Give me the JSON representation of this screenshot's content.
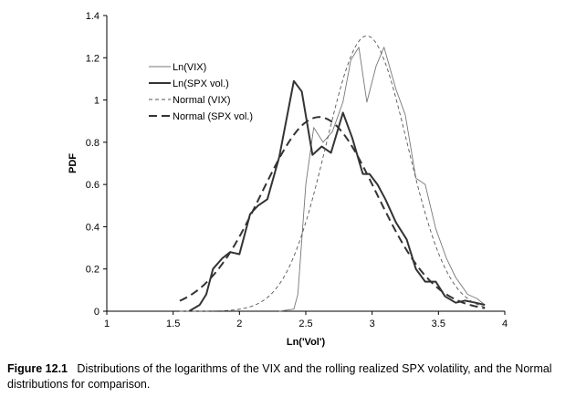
{
  "chart_data": {
    "type": "line",
    "title": "",
    "xlabel": "Ln('Vol')",
    "ylabel": "PDF",
    "xlim": [
      1,
      4
    ],
    "ylim": [
      0,
      1.4
    ],
    "x_ticks": [
      "1",
      "1.5",
      "2",
      "2.5",
      "3",
      "3.5",
      "4"
    ],
    "y_ticks": [
      "0",
      "0.2",
      "0.4",
      "0.6",
      "0.8",
      "1",
      "1.2",
      "1.4"
    ],
    "grid": false,
    "legend_position": "top-left (inside plot)",
    "series": [
      {
        "name": "Ln(VIX)",
        "style": "thin-solid",
        "color": "#777777",
        "points": [
          [
            2.3,
            0
          ],
          [
            2.41,
            0.01
          ],
          [
            2.44,
            0.08
          ],
          [
            2.5,
            0.6
          ],
          [
            2.56,
            0.87
          ],
          [
            2.63,
            0.8
          ],
          [
            2.7,
            0.85
          ],
          [
            2.78,
            0.99
          ],
          [
            2.84,
            1.19
          ],
          [
            2.9,
            1.25
          ],
          [
            2.96,
            0.99
          ],
          [
            3.03,
            1.16
          ],
          [
            3.09,
            1.25
          ],
          [
            3.18,
            1.05
          ],
          [
            3.25,
            0.93
          ],
          [
            3.33,
            0.63
          ],
          [
            3.4,
            0.6
          ],
          [
            3.48,
            0.39
          ],
          [
            3.56,
            0.25
          ],
          [
            3.63,
            0.16
          ],
          [
            3.72,
            0.08
          ],
          [
            3.79,
            0.06
          ],
          [
            3.85,
            0.03
          ]
        ]
      },
      {
        "name": "Ln(SPX vol.)",
        "style": "thick-solid",
        "color": "#333333",
        "points": [
          [
            1.62,
            0
          ],
          [
            1.7,
            0.03
          ],
          [
            1.75,
            0.08
          ],
          [
            1.8,
            0.2
          ],
          [
            1.87,
            0.25
          ],
          [
            1.93,
            0.28
          ],
          [
            2.0,
            0.27
          ],
          [
            2.08,
            0.46
          ],
          [
            2.14,
            0.5
          ],
          [
            2.21,
            0.53
          ],
          [
            2.3,
            0.73
          ],
          [
            2.41,
            1.09
          ],
          [
            2.47,
            1.04
          ],
          [
            2.55,
            0.74
          ],
          [
            2.62,
            0.78
          ],
          [
            2.69,
            0.75
          ],
          [
            2.78,
            0.94
          ],
          [
            2.85,
            0.82
          ],
          [
            2.93,
            0.65
          ],
          [
            2.98,
            0.65
          ],
          [
            3.04,
            0.6
          ],
          [
            3.1,
            0.53
          ],
          [
            3.18,
            0.42
          ],
          [
            3.26,
            0.34
          ],
          [
            3.33,
            0.2
          ],
          [
            3.4,
            0.14
          ],
          [
            3.48,
            0.14
          ],
          [
            3.55,
            0.07
          ],
          [
            3.63,
            0.04
          ],
          [
            3.7,
            0.05
          ],
          [
            3.78,
            0.04
          ],
          [
            3.85,
            0.03
          ]
        ]
      },
      {
        "name": "Normal (VIX)",
        "style": "thin-dashed",
        "color": "#555555",
        "mean": 2.96,
        "sd": 0.306
      },
      {
        "name": "Normal (SPX vol.)",
        "style": "thick-dashed",
        "color": "#333333",
        "mean": 2.6,
        "sd": 0.434
      }
    ]
  },
  "caption": {
    "label": "Figure 12.1",
    "text": "Distributions of the logarithms of the VIX and the rolling realized SPX volatility, and the Normal distributions for comparison."
  }
}
